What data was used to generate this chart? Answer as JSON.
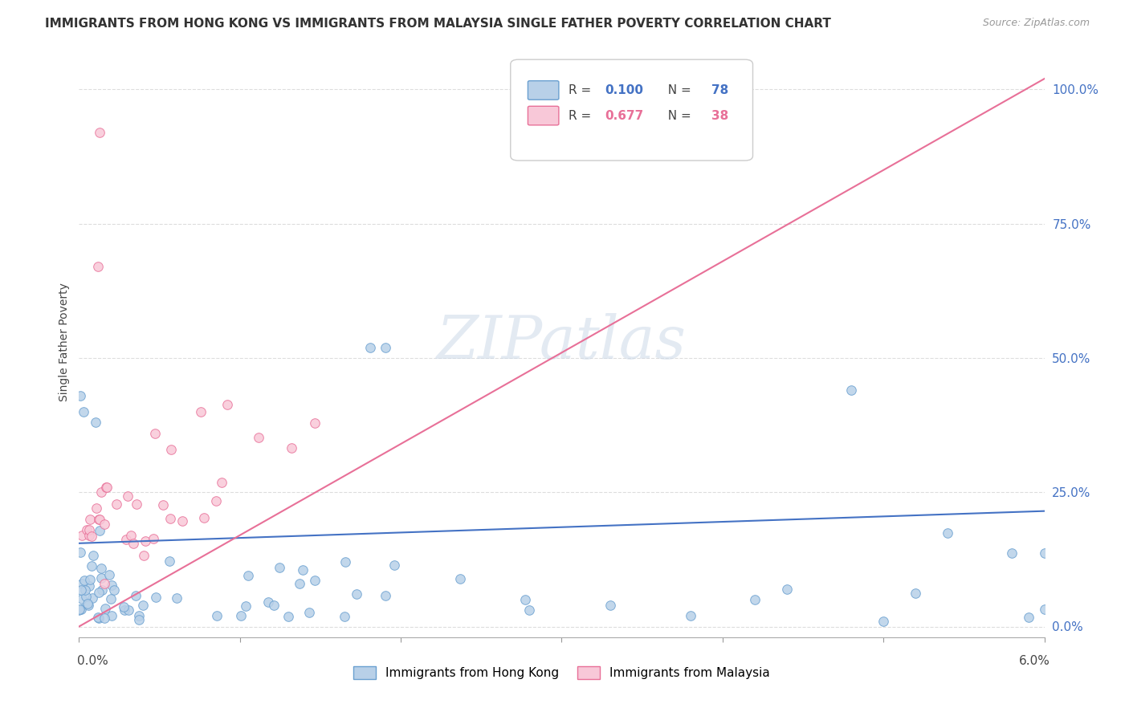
{
  "title": "IMMIGRANTS FROM HONG KONG VS IMMIGRANTS FROM MALAYSIA SINGLE FATHER POVERTY CORRELATION CHART",
  "source": "Source: ZipAtlas.com",
  "ylabel": "Single Father Poverty",
  "xmin": 0.0,
  "xmax": 0.06,
  "ymin": -0.02,
  "ymax": 1.08,
  "hk_color": "#b8d0e8",
  "hk_edge_color": "#6aa0d0",
  "my_color": "#f8c8d8",
  "my_edge_color": "#e87098",
  "hk_line_color": "#4472c4",
  "my_line_color": "#e87098",
  "watermark": "ZIPatlas",
  "hk_R": 0.1,
  "hk_N": 78,
  "my_R": 0.677,
  "my_N": 38,
  "hk_line_y0": 0.155,
  "hk_line_y1": 0.215,
  "my_line_y0": 0.0,
  "my_line_y1": 1.02,
  "yticks": [
    0.0,
    0.25,
    0.5,
    0.75,
    1.0
  ],
  "ytick_labels": [
    "0.0%",
    "25.0%",
    "50.0%",
    "75.0%",
    "100.0%"
  ],
  "right_axis_color": "#4472c4"
}
